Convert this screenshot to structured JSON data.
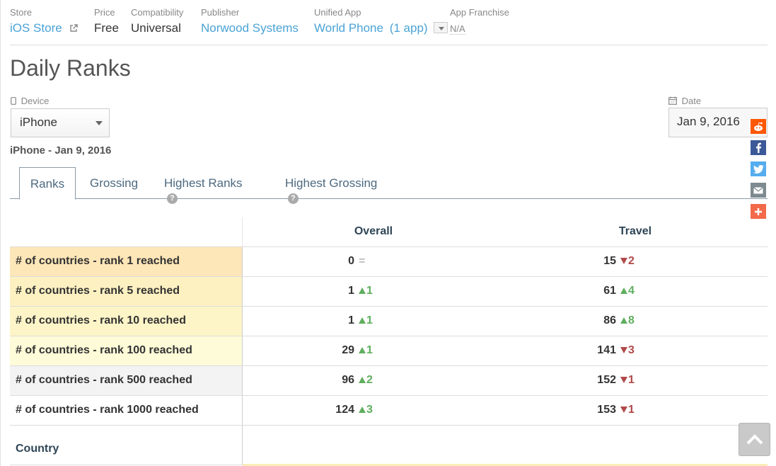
{
  "meta": {
    "store_label": "Store",
    "store_value": "iOS Store",
    "price_label": "Price",
    "price_value": "Free",
    "compat_label": "Compatibility",
    "compat_value": "Universal",
    "publisher_label": "Publisher",
    "publisher_value": "Norwood Systems",
    "unified_label": "Unified App",
    "unified_value": "World Phone",
    "unified_count": "(1 app)",
    "franchise_label": "App Franchise",
    "franchise_value": "N/A"
  },
  "page_title": "Daily Ranks",
  "device": {
    "label": "Device",
    "value": "iPhone"
  },
  "date": {
    "label": "Date",
    "value": "Jan 9, 2016"
  },
  "subtitle": "iPhone - Jan 9, 2016",
  "tabs": [
    {
      "label": "Ranks"
    },
    {
      "label": "Grossing"
    },
    {
      "label": "Highest Ranks"
    },
    {
      "label": "Highest Grossing"
    }
  ],
  "help_glyph": "?",
  "table": {
    "columns": [
      "Overall",
      "Travel"
    ],
    "rows": [
      {
        "label": "# of countries - rank 1 reached",
        "bg": "#fde6b8",
        "overall": "0",
        "overall_delta": "=",
        "overall_dir": "eq",
        "travel": "15",
        "travel_delta": "2",
        "travel_dir": "down"
      },
      {
        "label": "# of countries - rank 5 reached",
        "bg": "#fdf1c2",
        "overall": "1",
        "overall_delta": "1",
        "overall_dir": "up",
        "travel": "61",
        "travel_delta": "4",
        "travel_dir": "up"
      },
      {
        "label": "# of countries - rank 10 reached",
        "bg": "#fdf5c8",
        "overall": "1",
        "overall_delta": "1",
        "overall_dir": "up",
        "travel": "86",
        "travel_delta": "8",
        "travel_dir": "up"
      },
      {
        "label": "# of countries - rank 100 reached",
        "bg": "#fefbd8",
        "overall": "29",
        "overall_delta": "1",
        "overall_dir": "up",
        "travel": "141",
        "travel_delta": "3",
        "travel_dir": "down"
      },
      {
        "label": "# of countries - rank 500 reached",
        "bg": "#f3f3f3",
        "overall": "96",
        "overall_delta": "2",
        "overall_dir": "up",
        "travel": "152",
        "travel_delta": "1",
        "travel_dir": "down"
      },
      {
        "label": "# of countries - rank 1000 reached",
        "bg": "#ffffff",
        "overall": "124",
        "overall_delta": "3",
        "overall_dir": "up",
        "travel": "153",
        "travel_delta": "1",
        "travel_dir": "down"
      }
    ],
    "country_label": "Country"
  },
  "colors": {
    "link": "#4aa3d6",
    "up": "#5fae5f",
    "down": "#b04a4a",
    "reddit": "#ff5700",
    "facebook": "#3b5998",
    "twitter": "#55acee",
    "email": "#7d8a8f",
    "share": "#f26a4b"
  },
  "social_icons": [
    "reddit-icon",
    "facebook-icon",
    "twitter-icon",
    "email-icon",
    "share-icon"
  ]
}
